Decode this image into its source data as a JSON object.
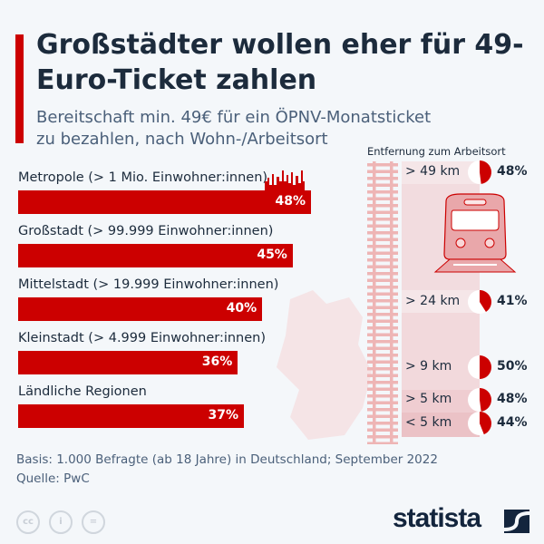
{
  "title": "Großstädter wollen eher für 49-Euro-Ticket zahlen",
  "subtitle_line1": "Bereitschaft min. 49€ für ein ÖPNV-Monatsticket",
  "subtitle_line2": "zu bezahlen, nach Wohn-/Arbeitsort",
  "chart_data": [
    {
      "type": "bar",
      "orientation": "horizontal",
      "categories": [
        "Metropole (> 1 Mio. Einwohner:innen)",
        "Großstadt (> 99.999 Einwohner:innen)",
        "Mittelstadt (> 19.999 Einwohner:innen)",
        "Kleinstadt (> 4.999 Einwohner:innen)",
        "Ländliche Regionen"
      ],
      "values": [
        48,
        45,
        40,
        36,
        37
      ],
      "labels": [
        "48%",
        "45%",
        "40%",
        "36%",
        "37%"
      ],
      "unit": "%",
      "color": "#cc0000"
    },
    {
      "type": "pie",
      "title": "Entfernung zum Arbeitsort",
      "categories": [
        "> 49 km",
        "> 24 km",
        "> 9 km",
        "> 5 km",
        "< 5 km"
      ],
      "values": [
        48,
        41,
        50,
        48,
        44
      ],
      "labels": [
        "48%",
        "41%",
        "50%",
        "48%",
        "44%"
      ],
      "unit": "%",
      "color": "#cc0000"
    }
  ],
  "source_basis": "Basis: 1.000 Befragte (ab 18 Jahre) in Deutschland; September 2022",
  "source_quelle": "Quelle: PwC",
  "license_icons": [
    "cc",
    "by",
    "nd"
  ],
  "logo": "statista",
  "colors": {
    "accent": "#cc0000",
    "text": "#1c2b3c",
    "band": "#f2d7da",
    "rail": "#eeb5b5"
  }
}
